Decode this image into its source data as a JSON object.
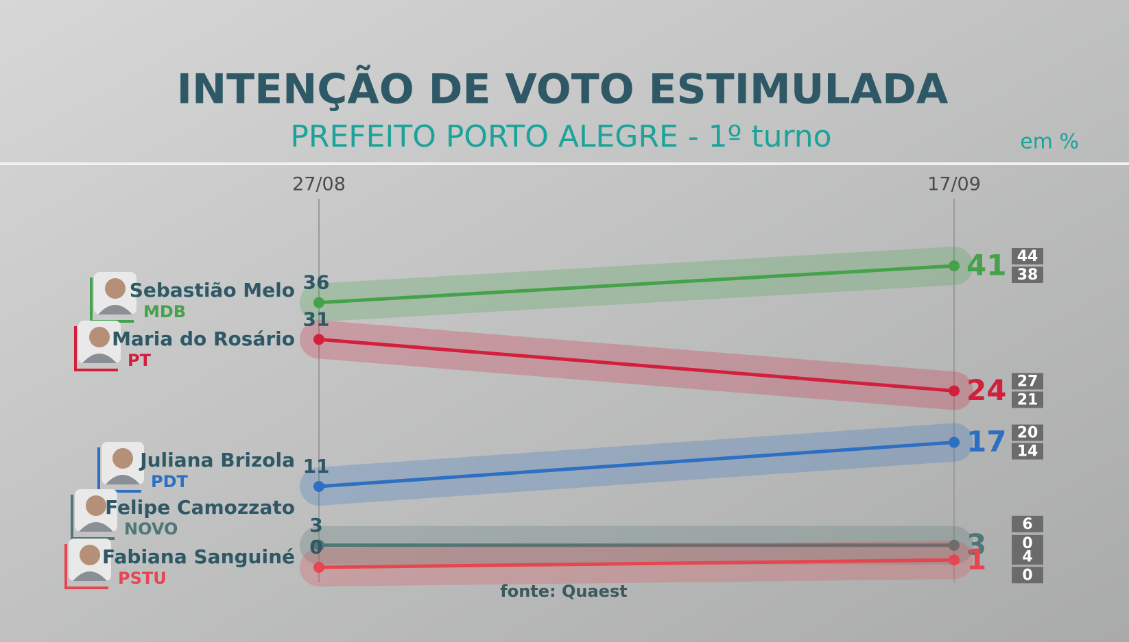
{
  "chart_data": {
    "type": "line",
    "title": "INTENÇÃO DE VOTO ESTIMULADA",
    "subtitle": "PREFEITO PORTO ALEGRE - 1º turno",
    "unit": "em %",
    "source": "fonte: Quaest",
    "x": [
      "27/08",
      "17/09"
    ],
    "ylim": [
      0,
      41
    ],
    "series": [
      {
        "name": "Sebastião Melo",
        "party": "MDB",
        "color": "#45a24b",
        "values": [
          36,
          41
        ],
        "interval": [
          44,
          38
        ]
      },
      {
        "name": "Maria do Rosário",
        "party": "PT",
        "color": "#d21f3c",
        "values": [
          31,
          24
        ],
        "interval": [
          27,
          21
        ]
      },
      {
        "name": "Juliana Brizola",
        "party": "PDT",
        "color": "#2d6fc2",
        "values": [
          11,
          17
        ],
        "interval": [
          20,
          14
        ]
      },
      {
        "name": "Felipe Camozzato",
        "party": "NOVO",
        "color": "#4e7775",
        "values": [
          3,
          3
        ],
        "interval": [
          6,
          0
        ]
      },
      {
        "name": "Fabiana Sanguiné",
        "party": "PSTU",
        "color": "#e4474f",
        "values": [
          0,
          1
        ],
        "interval": [
          4,
          0
        ]
      }
    ]
  }
}
